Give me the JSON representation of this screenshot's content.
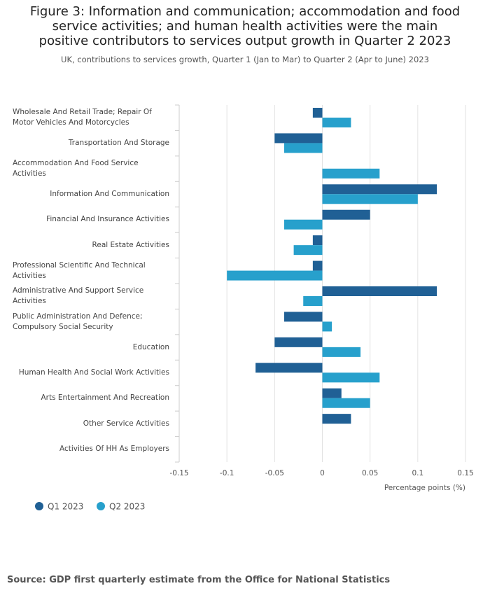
{
  "chart_data": {
    "type": "hbar",
    "title": "Figure 3: Information and communication; accommodation and food service activities; and human health activities were the main positive contributors to services output growth in Quarter 2 2023",
    "subtitle": "UK, contributions to services growth, Quarter 1 (Jan to Mar) to Quarter 2 (Apr to June) 2023",
    "source": "Source: GDP first quarterly estimate from the Office for National Statistics",
    "x_label": "Percentage points (%)",
    "categories": [
      "Wholesale And Retail Trade; Repair Of Motor Vehicles And Motorcycles",
      "Transportation And Storage",
      "Accommodation And Food Service Activities",
      "Information And Communication",
      "Financial And Insurance Activities",
      "Real Estate Activities",
      "Professional Scientific And Technical Activities",
      "Administrative And Support Service Activities",
      "Public Administration And Defence; Compulsory Social Security",
      "Education",
      "Human Health And Social Work Activities",
      "Arts Entertainment And Recreation",
      "Other Service Activities",
      "Activities Of HH As Employers"
    ],
    "series": [
      {
        "name": "Q1 2023",
        "color": "#206095",
        "values": [
          -0.01,
          -0.05,
          0,
          0.12,
          0.05,
          -0.01,
          -0.01,
          0.12,
          -0.04,
          -0.05,
          -0.07,
          0.02,
          0.03,
          0
        ]
      },
      {
        "name": "Q2 2023",
        "color": "#27a0cc",
        "values": [
          0.03,
          -0.04,
          0.06,
          0.1,
          -0.04,
          -0.03,
          -0.1,
          -0.02,
          0.01,
          0.04,
          0.06,
          0.05,
          0,
          0
        ]
      }
    ],
    "xlim": [
      -0.15,
      0.15
    ],
    "xticks": [
      -0.15,
      -0.1,
      -0.05,
      0,
      0.05,
      0.1,
      0.15
    ],
    "grid": true
  }
}
